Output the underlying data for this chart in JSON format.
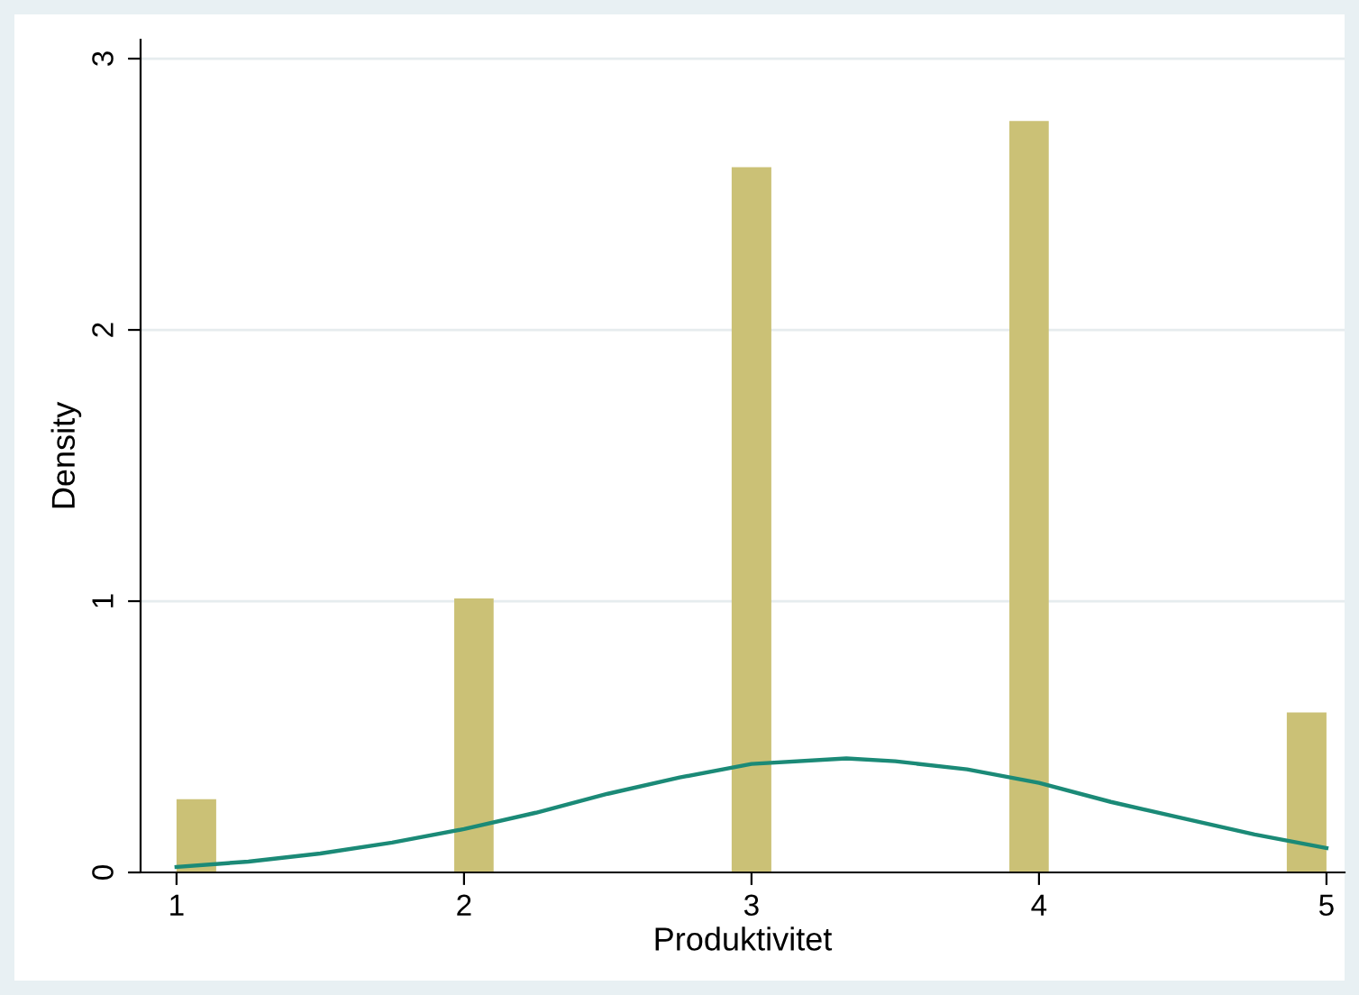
{
  "chart_data": {
    "type": "histogram",
    "xlabel": "Produktivitet",
    "ylabel": "Density",
    "xlim": [
      0.875,
      5.063
    ],
    "ylim": [
      0,
      3.07
    ],
    "xticks": [
      1,
      2,
      3,
      4,
      5
    ],
    "yticks": [
      0,
      1,
      2,
      3
    ],
    "grid": "y",
    "series": [
      {
        "type": "histogram",
        "color": "#cbc176",
        "bins": [
          1,
          1.138,
          1.276,
          1.414,
          1.552,
          1.69,
          1.828,
          1.966,
          2.103,
          2.241,
          2.379,
          2.517,
          2.655,
          2.793,
          2.931,
          3.069,
          3.207,
          3.345,
          3.483,
          3.621,
          3.759,
          3.897,
          4.034,
          4.172,
          4.31,
          4.448,
          4.586,
          4.724,
          4.862,
          5
        ],
        "values": [
          0.27,
          0,
          0,
          0,
          0,
          0,
          0,
          1.01,
          0,
          0,
          0,
          0,
          0,
          0,
          2.6,
          0,
          0,
          0,
          0,
          0,
          0,
          2.77,
          0,
          0,
          0,
          0,
          0,
          0,
          0.59
        ]
      },
      {
        "type": "line",
        "color": "#1b8a77",
        "x": [
          1,
          1.25,
          1.5,
          1.75,
          2,
          2.25,
          2.5,
          2.75,
          3,
          3.33,
          3.5,
          3.75,
          4,
          4.25,
          4.5,
          4.75,
          5
        ],
        "values": [
          0.02,
          0.04,
          0.07,
          0.11,
          0.16,
          0.22,
          0.29,
          0.35,
          0.4,
          0.42,
          0.41,
          0.38,
          0.33,
          0.26,
          0.2,
          0.14,
          0.09
        ]
      }
    ]
  }
}
